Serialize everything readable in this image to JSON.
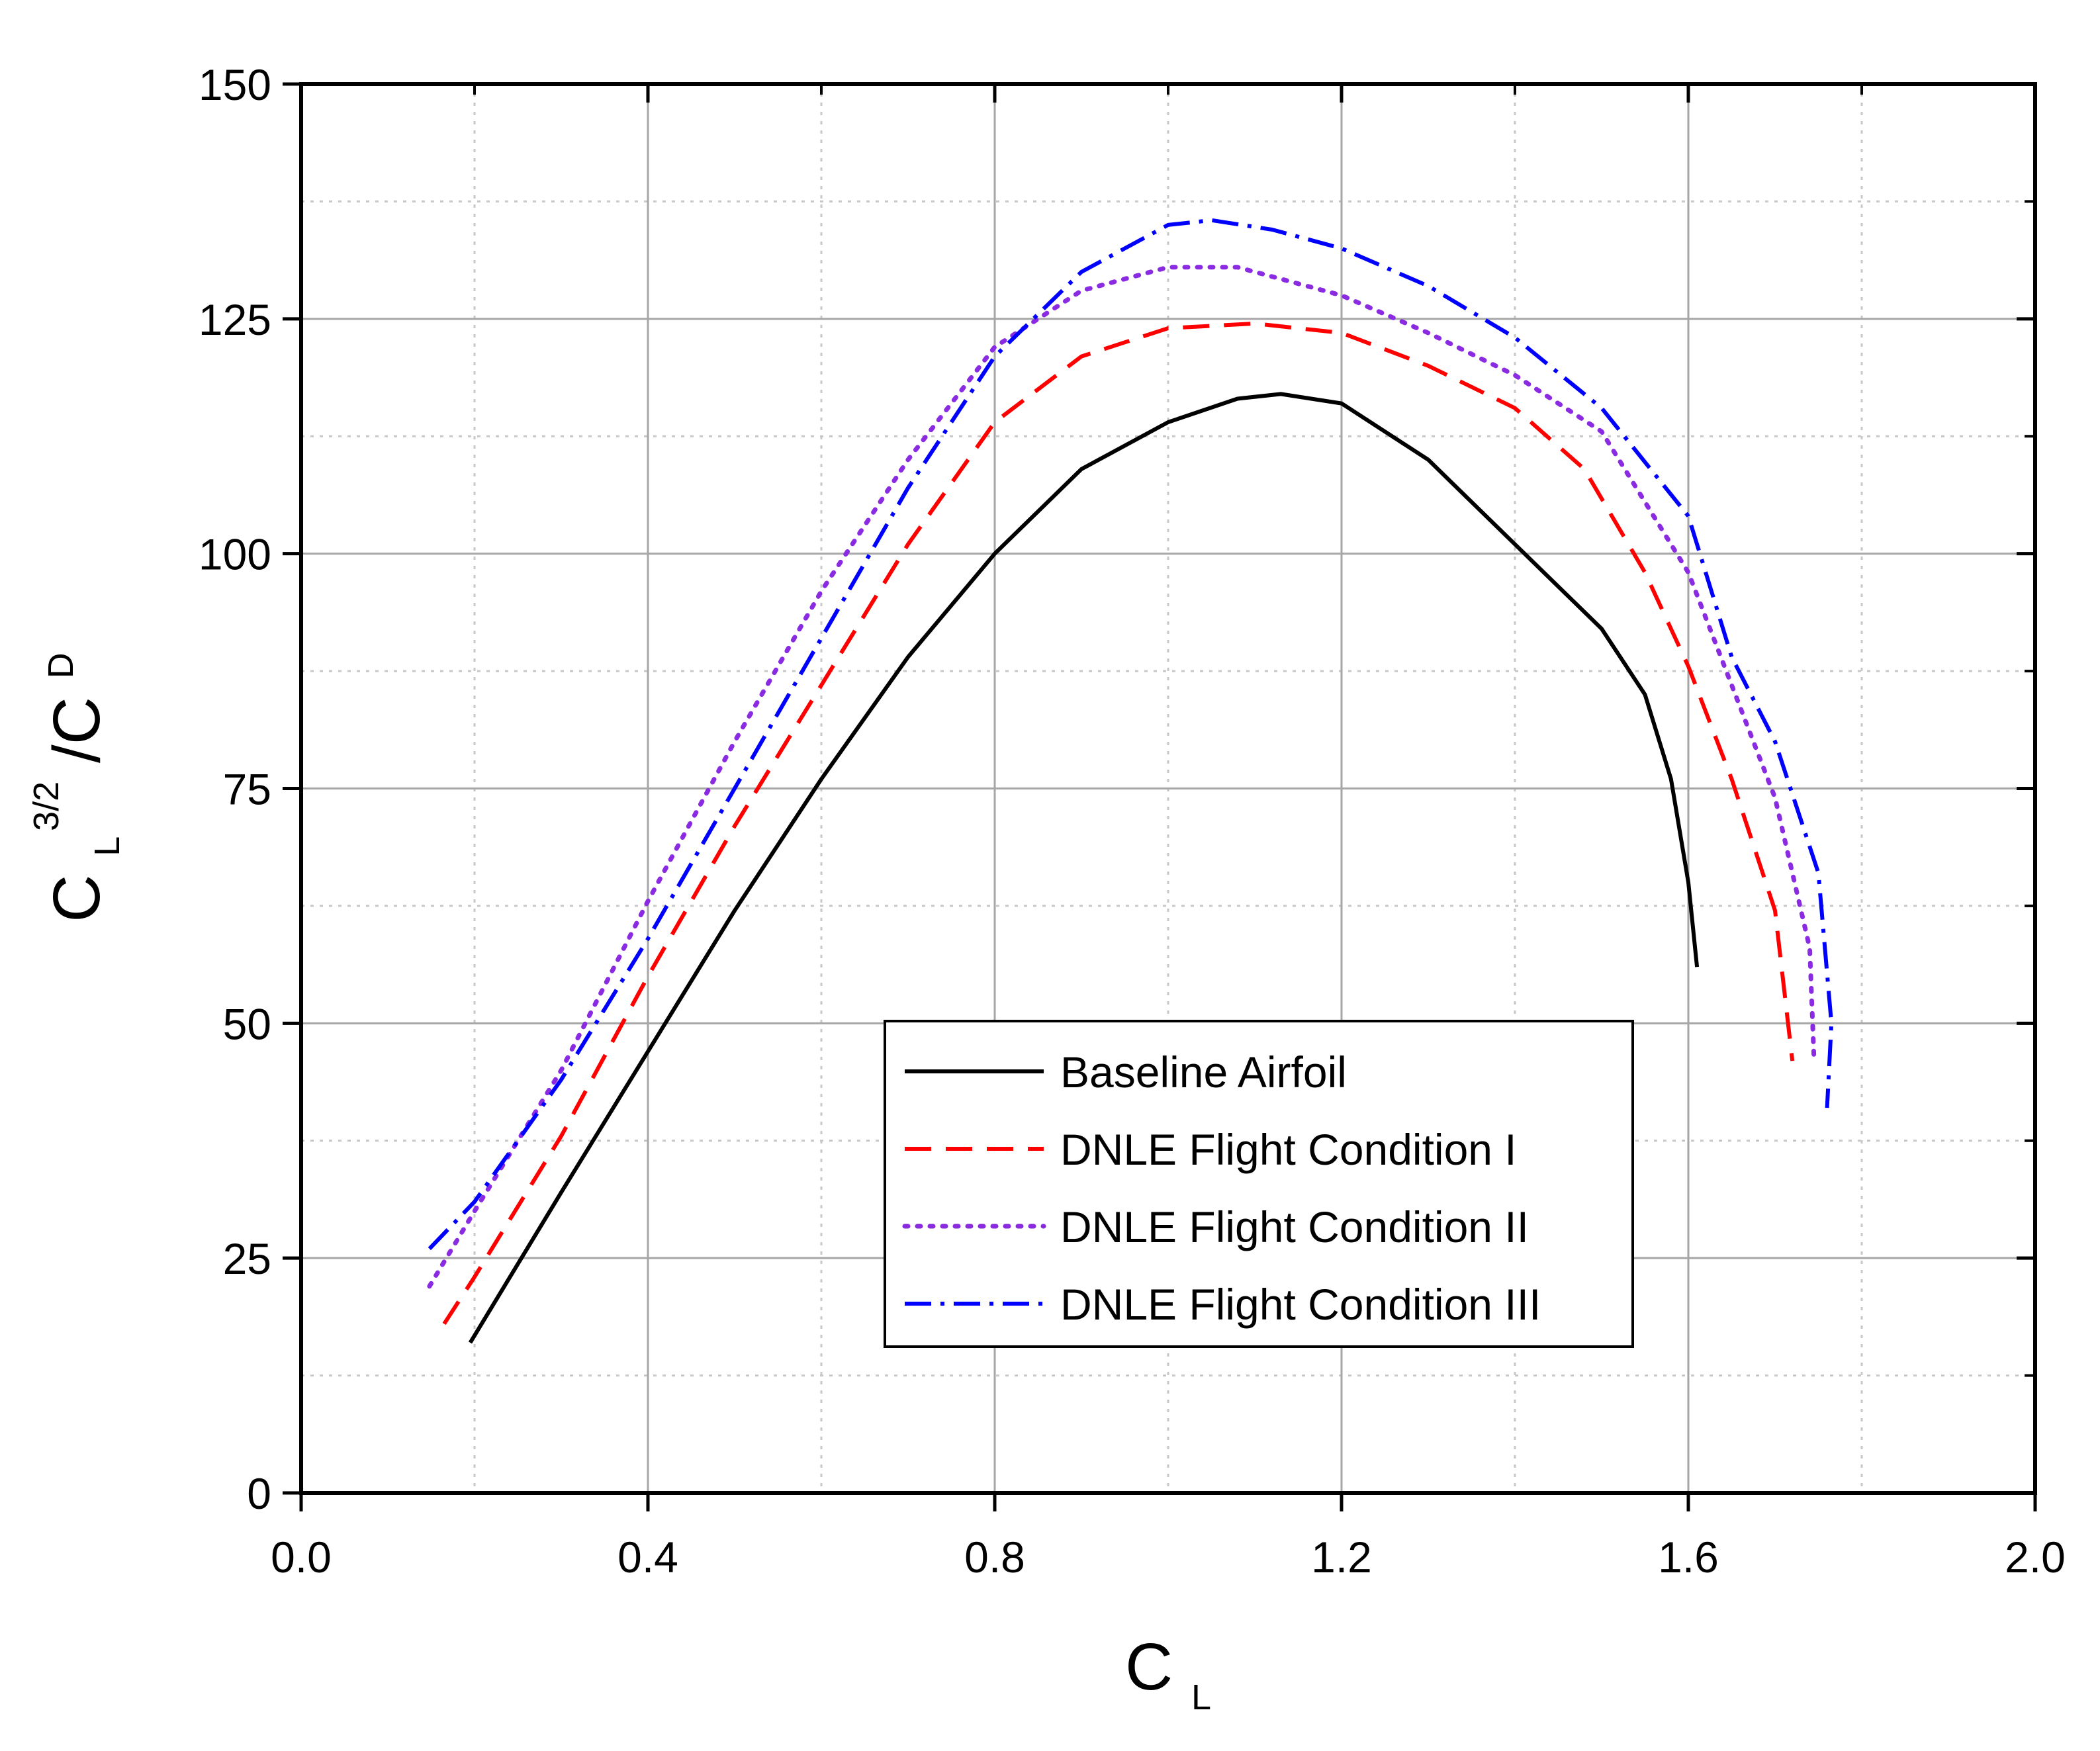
{
  "chart_data": {
    "type": "line",
    "title": "",
    "xlabel": "C_L",
    "ylabel": "C_L^3/2 / C^D",
    "xlim": [
      0.0,
      2.0
    ],
    "ylim": [
      0,
      150
    ],
    "grid": true,
    "legend_position": "center-bottom",
    "x_ticks": [
      "0.0",
      "0.4",
      "0.8",
      "1.2",
      "1.6",
      "2.0"
    ],
    "y_ticks": [
      "0",
      "25",
      "50",
      "75",
      "100",
      "125",
      "150"
    ],
    "axis_labels": {
      "x_main": "C",
      "x_sub": "L",
      "y_main_1": "C",
      "y_sub_1": "L",
      "y_sup": "3/2",
      "y_main_2": "/C",
      "y_sup_2": "D"
    },
    "series": [
      {
        "name": "Baseline Airfoil",
        "color": "#000000",
        "style": "solid",
        "points": [
          [
            0.195,
            16
          ],
          [
            0.3,
            32
          ],
          [
            0.4,
            47
          ],
          [
            0.5,
            62
          ],
          [
            0.6,
            76
          ],
          [
            0.7,
            89
          ],
          [
            0.8,
            100
          ],
          [
            0.9,
            109
          ],
          [
            1.0,
            114
          ],
          [
            1.08,
            116.5
          ],
          [
            1.13,
            117
          ],
          [
            1.2,
            116
          ],
          [
            1.3,
            110
          ],
          [
            1.4,
            101
          ],
          [
            1.5,
            92
          ],
          [
            1.55,
            85
          ],
          [
            1.58,
            76
          ],
          [
            1.6,
            65
          ],
          [
            1.61,
            56
          ]
        ]
      },
      {
        "name": "DNLE Flight Condition I",
        "color": "#ff0000",
        "style": "dashed",
        "points": [
          [
            0.165,
            18
          ],
          [
            0.2,
            23
          ],
          [
            0.3,
            38
          ],
          [
            0.4,
            55
          ],
          [
            0.5,
            71
          ],
          [
            0.6,
            86
          ],
          [
            0.7,
            101
          ],
          [
            0.8,
            114
          ],
          [
            0.9,
            121
          ],
          [
            1.0,
            124
          ],
          [
            1.1,
            124.5
          ],
          [
            1.2,
            123.5
          ],
          [
            1.3,
            120
          ],
          [
            1.4,
            115.5
          ],
          [
            1.48,
            109
          ],
          [
            1.55,
            98
          ],
          [
            1.6,
            88
          ],
          [
            1.65,
            76
          ],
          [
            1.7,
            62
          ],
          [
            1.72,
            46
          ]
        ]
      },
      {
        "name": "DNLE Flight Condition II",
        "color": "#8a2be2",
        "style": "dotted",
        "points": [
          [
            0.148,
            22
          ],
          [
            0.2,
            30
          ],
          [
            0.3,
            45
          ],
          [
            0.4,
            63
          ],
          [
            0.5,
            80
          ],
          [
            0.6,
            96
          ],
          [
            0.7,
            110
          ],
          [
            0.8,
            122
          ],
          [
            0.9,
            128
          ],
          [
            1.0,
            130.5
          ],
          [
            1.08,
            130.5
          ],
          [
            1.2,
            127.5
          ],
          [
            1.3,
            123.5
          ],
          [
            1.4,
            119
          ],
          [
            1.5,
            113
          ],
          [
            1.6,
            98
          ],
          [
            1.65,
            86
          ],
          [
            1.7,
            74
          ],
          [
            1.74,
            58
          ],
          [
            1.745,
            46
          ]
        ]
      },
      {
        "name": "DNLE Flight Condition III",
        "color": "#0000ff",
        "style": "dashdot",
        "points": [
          [
            0.148,
            26
          ],
          [
            0.2,
            31
          ],
          [
            0.3,
            44
          ],
          [
            0.4,
            59
          ],
          [
            0.5,
            75
          ],
          [
            0.6,
            91
          ],
          [
            0.7,
            107
          ],
          [
            0.8,
            121
          ],
          [
            0.9,
            130
          ],
          [
            1.0,
            135
          ],
          [
            1.05,
            135.5
          ],
          [
            1.12,
            134.5
          ],
          [
            1.2,
            132.5
          ],
          [
            1.3,
            128.5
          ],
          [
            1.4,
            123
          ],
          [
            1.5,
            115.5
          ],
          [
            1.6,
            104
          ],
          [
            1.65,
            89
          ],
          [
            1.7,
            80
          ],
          [
            1.75,
            66
          ],
          [
            1.765,
            50
          ],
          [
            1.76,
            41
          ]
        ]
      }
    ]
  }
}
